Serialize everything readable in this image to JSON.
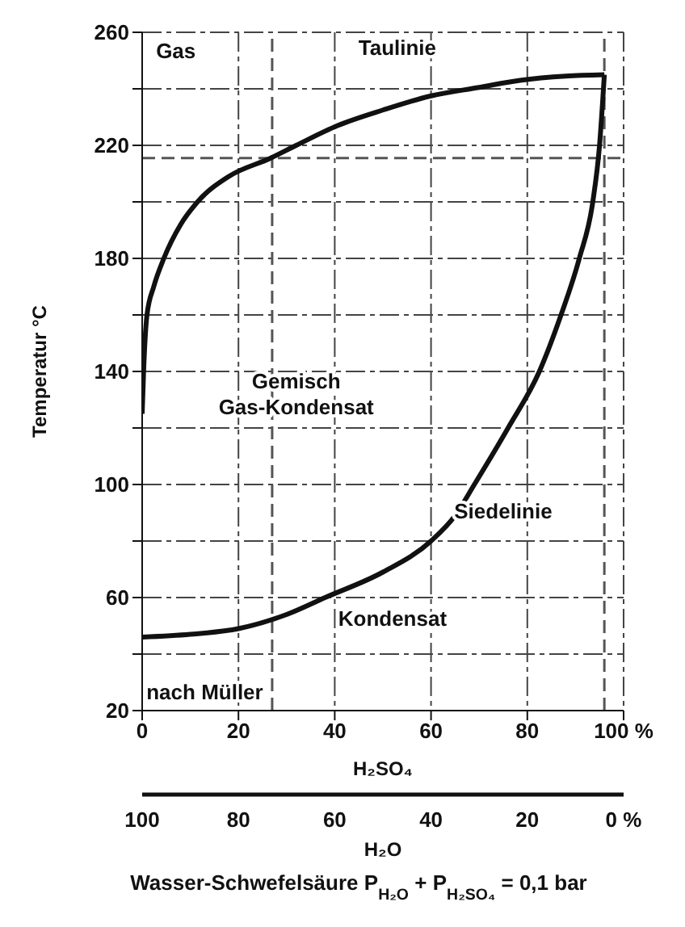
{
  "chart_data": {
    "type": "line",
    "xlabel": "H₂SO₄",
    "ylabel": "Temperatur °C",
    "xlim": [
      0,
      100
    ],
    "xticks": [
      0,
      20,
      40,
      60,
      80,
      {
        "value": 100,
        "label": "100 %"
      }
    ],
    "x2lim": [
      100,
      0
    ],
    "x2ticks": [
      100,
      80,
      60,
      40,
      20,
      {
        "value": 0,
        "label": "0 %"
      }
    ],
    "x2label": "H₂O",
    "ylim": [
      20,
      260
    ],
    "yticks": [
      20,
      {
        "value": 40,
        "label": null
      },
      60,
      {
        "value": 80,
        "label": null
      },
      100,
      {
        "value": 120,
        "label": null
      },
      140,
      {
        "value": 160,
        "label": null
      },
      180,
      {
        "value": 200,
        "label": null
      },
      220,
      {
        "value": 240,
        "label": null
      },
      260
    ],
    "grid": true,
    "marker": "none",
    "line_style": "solid",
    "series": [
      {
        "color": "#111111",
        "x": [
          0,
          0.3,
          1,
          2.4,
          4.5,
          8,
          11.5,
          18,
          26.7,
          32,
          40.6,
          50,
          60,
          70,
          78.5,
          88,
          96
        ],
        "values": [
          125,
          140,
          160,
          170,
          180,
          192,
          200,
          209,
          215.5,
          220,
          227,
          232.5,
          237.5,
          240.5,
          243,
          244.5,
          245
        ]
      },
      {
        "color": "#111111",
        "x": [
          0,
          10,
          20,
          30,
          38,
          50,
          60,
          65,
          69,
          76,
          82.5,
          87,
          90.8,
          93.6,
          95,
          96
        ],
        "values": [
          46,
          47,
          49,
          54,
          60,
          69,
          80,
          89,
          100,
          120,
          140,
          160,
          180,
          200,
          220,
          245
        ]
      }
    ],
    "ref_lines": [
      {
        "axis": "x",
        "value": 27,
        "line_style": "dashed",
        "color": "#555555"
      },
      {
        "axis": "y",
        "value": 215.5,
        "line_style": "dashed",
        "color": "#555555"
      },
      {
        "axis": "x",
        "value": 96,
        "line_style": "dashed",
        "color": "#555555"
      }
    ],
    "annotations": [
      "Gas",
      "Taulinie",
      "Gemisch\nGas-Kondensat",
      "Siedelinie",
      "Kondensat",
      "nach Müller",
      "Wasser-Schwefelsäure   P$_{H₂O}$ + P$_{H₂SO₄}$ = 0,1 bar"
    ]
  }
}
